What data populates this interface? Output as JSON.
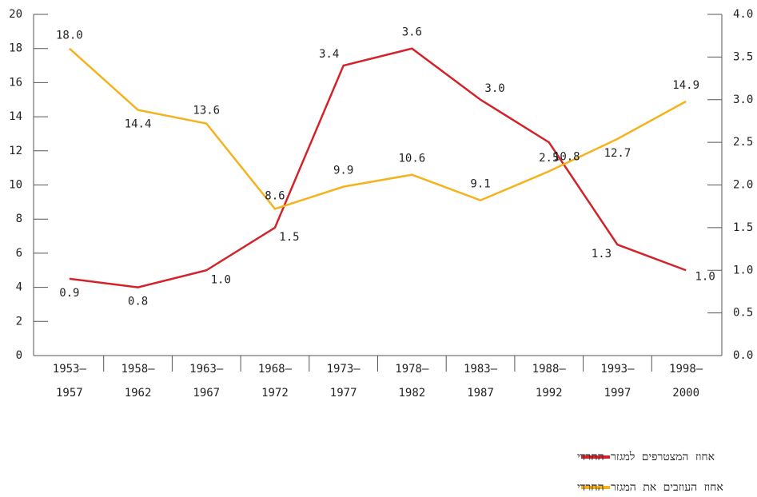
{
  "chart_data": {
    "type": "line",
    "categories": [
      [
        "1953–",
        "1957"
      ],
      [
        "1958–",
        "1962"
      ],
      [
        "1963–",
        "1967"
      ],
      [
        "1968–",
        "1972"
      ],
      [
        "1973–",
        "1977"
      ],
      [
        "1978–",
        "1982"
      ],
      [
        "1983–",
        "1987"
      ],
      [
        "1988–",
        "1992"
      ],
      [
        "1993–",
        "1997"
      ],
      [
        "1998–",
        "2000"
      ]
    ],
    "series": [
      {
        "name": "אחוז המצטרפים למגזר החרדי",
        "color": "#d2232a",
        "axis": "y2",
        "values": [
          0.9,
          0.8,
          1.0,
          1.5,
          3.4,
          3.6,
          3.0,
          2.5,
          1.3,
          1.0
        ],
        "value_labels": [
          "0.9",
          "0.8",
          "1.0",
          "1.5",
          "3.4",
          "3.6",
          "3.0",
          "2.5",
          "1.3",
          "1.0"
        ]
      },
      {
        "name": "אחוז העוזבים את המגזר החרדי",
        "color": "#f5b21c",
        "axis": "y",
        "values": [
          18.0,
          14.4,
          13.6,
          8.6,
          9.9,
          10.6,
          9.1,
          10.8,
          12.7,
          14.9
        ],
        "value_labels": [
          "18.0",
          "14.4",
          "13.6",
          "8.6",
          "9.9",
          "10.6",
          "9.1",
          "10.8",
          "12.7",
          "14.9"
        ]
      }
    ],
    "ylim": [
      0,
      20
    ],
    "yticks": [
      0,
      2,
      4,
      6,
      8,
      10,
      12,
      14,
      16,
      18,
      20
    ],
    "y2lim": [
      0,
      4
    ],
    "y2ticks": [
      {
        "value": 0,
        "label": "0.0"
      },
      {
        "value": 0.5,
        "label": "0.5"
      },
      {
        "value": 1,
        "label": "1.0"
      },
      {
        "value": 1.5,
        "label": "1.5"
      },
      {
        "value": 2,
        "label": "2.0"
      },
      {
        "value": 2.5,
        "label": "2.5"
      },
      {
        "value": 3,
        "label": "3.0"
      },
      {
        "value": 3.5,
        "label": "3.5"
      },
      {
        "value": 4,
        "label": "4.0"
      }
    ]
  }
}
